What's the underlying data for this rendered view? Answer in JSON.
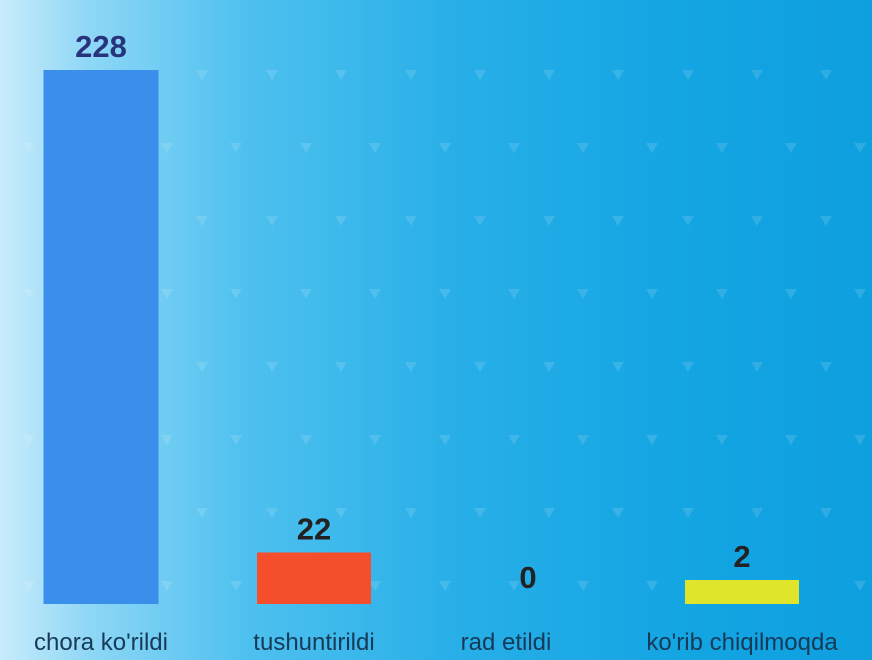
{
  "chart_data": {
    "type": "bar",
    "categories": [
      "chora ko'rildi",
      "tushuntirildi",
      "rad etildi",
      "ko'rib chiqilmoqda"
    ],
    "values": [
      228,
      22,
      0,
      2
    ],
    "value_labels": [
      "228",
      "22",
      "0",
      "2"
    ],
    "bar_colors": [
      "#3a8feb",
      "#f44e2c",
      "#2b9be4",
      "#e0e42a"
    ],
    "value_label_colors": [
      "#27347c",
      "#222222",
      "#222222",
      "#222222"
    ],
    "title": "",
    "xlabel": "",
    "ylabel": "",
    "ylim": [
      0,
      228
    ],
    "grid": false,
    "legend": "none"
  },
  "style": {
    "background_start": "#c9ecfb",
    "background_end": "#0e9fdf",
    "pattern_color": "#ffffff",
    "pattern_icon": "triangle-down-icon"
  }
}
